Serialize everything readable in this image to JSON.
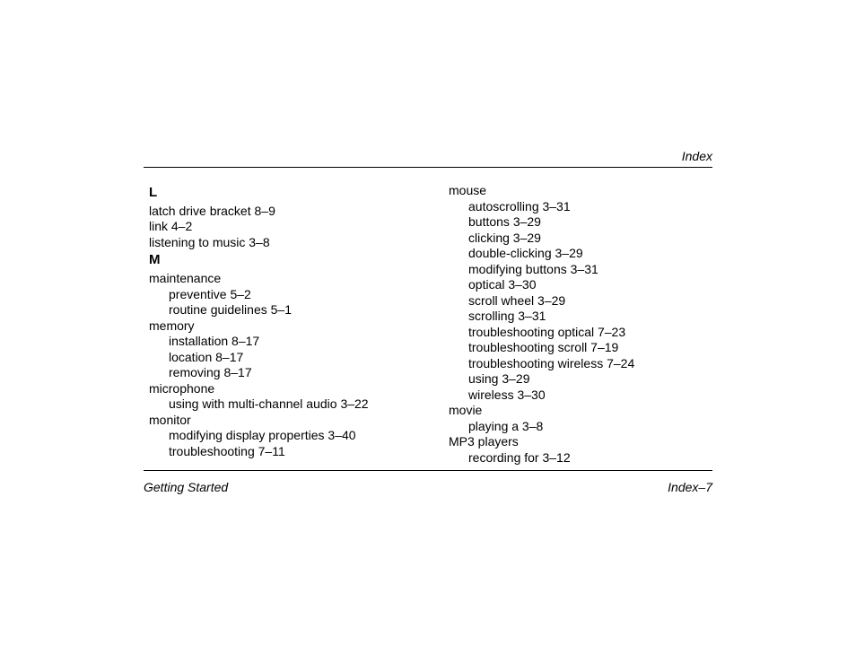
{
  "page": {
    "background_color": "#ffffff",
    "text_color": "#000000",
    "rule_color": "#000000",
    "font_family": "Futura, Century Gothic, Trebuchet MS, Arial, sans-serif",
    "body_fontsize": 14,
    "header_fontsize": 14,
    "footer_fontsize": 14,
    "letter_fontsize": 15
  },
  "header": {
    "right": "Index"
  },
  "footer": {
    "left": "Getting Started",
    "right": "Index–7"
  },
  "col1": {
    "letterL": "L",
    "L_entries": [
      "latch drive bracket 8–9",
      "link 4–2",
      "listening to music 3–8"
    ],
    "letterM": "M",
    "maintenance": "maintenance",
    "maintenance_subs": [
      "preventive 5–2",
      "routine guidelines 5–1"
    ],
    "memory": "memory",
    "memory_subs": [
      "installation 8–17",
      "location 8–17",
      "removing 8–17"
    ],
    "microphone": "microphone",
    "microphone_subs": [
      "using with multi-channel audio 3–22"
    ],
    "monitor": "monitor",
    "monitor_subs": [
      "modifying display properties 3–40",
      "troubleshooting 7–11"
    ]
  },
  "col2": {
    "mouse": "mouse",
    "mouse_subs": [
      "autoscrolling 3–31",
      "buttons 3–29",
      "clicking 3–29",
      "double-clicking 3–29",
      "modifying buttons 3–31",
      "optical 3–30",
      "scroll wheel 3–29",
      "scrolling 3–31",
      "troubleshooting optical 7–23",
      "troubleshooting scroll 7–19",
      "troubleshooting wireless 7–24",
      "using 3–29",
      "wireless 3–30"
    ],
    "movie": "movie",
    "movie_subs": [
      "playing a 3–8"
    ],
    "mp3": "MP3 players",
    "mp3_subs": [
      "recording for 3–12"
    ]
  }
}
